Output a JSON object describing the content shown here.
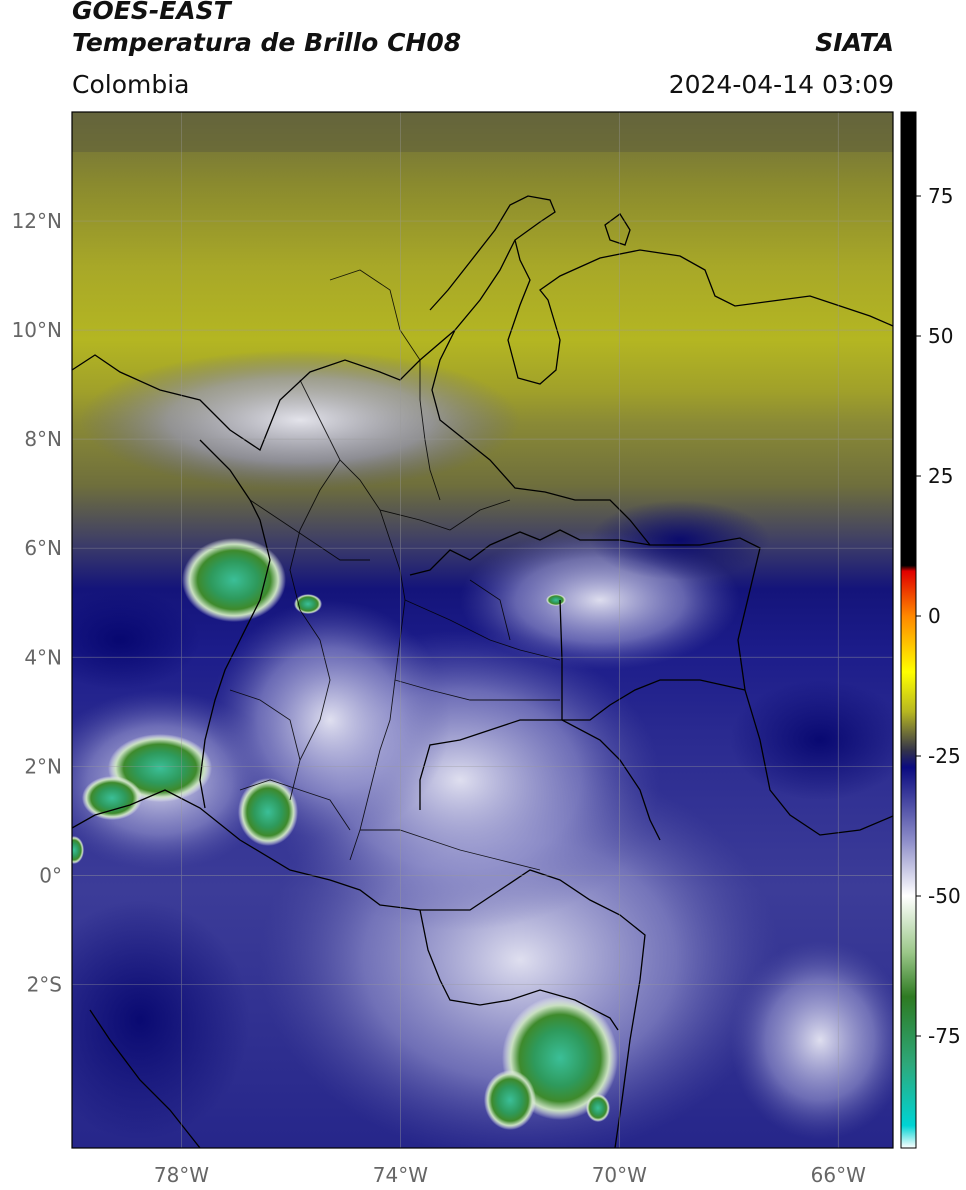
{
  "header": {
    "satellite": "GOES-EAST",
    "product": "Temperatura de Brillo CH08",
    "region": "Colombia",
    "org": "SIATA",
    "datetime": "2024-04-14 03:09"
  },
  "map": {
    "lon_range": [
      -80,
      -65
    ],
    "lat_range": [
      -5,
      14
    ],
    "lat_ticks": [
      {
        "value": 12,
        "label": "12°N"
      },
      {
        "value": 10,
        "label": "10°N"
      },
      {
        "value": 8,
        "label": "8°N"
      },
      {
        "value": 6,
        "label": "6°N"
      },
      {
        "value": 4,
        "label": "4°N"
      },
      {
        "value": 2,
        "label": "2°N"
      },
      {
        "value": 0,
        "label": "0°"
      },
      {
        "value": -2,
        "label": "2°S"
      }
    ],
    "lon_ticks": [
      {
        "value": -78,
        "label": "78°W"
      },
      {
        "value": -74,
        "label": "74°W"
      },
      {
        "value": -70,
        "label": "70°W"
      },
      {
        "value": -66,
        "label": "66°W"
      }
    ],
    "grid": true
  },
  "colorbar": {
    "range": [
      -95,
      90
    ],
    "ticks": [
      {
        "value": 75,
        "label": "75"
      },
      {
        "value": 50,
        "label": "50"
      },
      {
        "value": 25,
        "label": "25"
      },
      {
        "value": 0,
        "label": "0"
      },
      {
        "value": -25,
        "label": "-25"
      },
      {
        "value": -50,
        "label": "-50"
      },
      {
        "value": -75,
        "label": "-75"
      }
    ],
    "stops": [
      {
        "value": -95,
        "color": "#ffffff"
      },
      {
        "value": -91,
        "color": "#00d4d4"
      },
      {
        "value": -80,
        "color": "#2ea87a"
      },
      {
        "value": -68,
        "color": "#2e7a22"
      },
      {
        "value": -60,
        "color": "#9cc88a"
      },
      {
        "value": -50,
        "color": "#ffffff"
      },
      {
        "value": -40,
        "color": "#8c8cc8"
      },
      {
        "value": -27,
        "color": "#0a0a80"
      },
      {
        "value": -24,
        "color": "#33334a"
      },
      {
        "value": -17,
        "color": "#b8b820"
      },
      {
        "value": -10,
        "color": "#ffff00"
      },
      {
        "value": 0,
        "color": "#ff8800"
      },
      {
        "value": 8,
        "color": "#e00000"
      },
      {
        "value": 9,
        "color": "#000000"
      },
      {
        "value": 90,
        "color": "#000000"
      }
    ]
  }
}
